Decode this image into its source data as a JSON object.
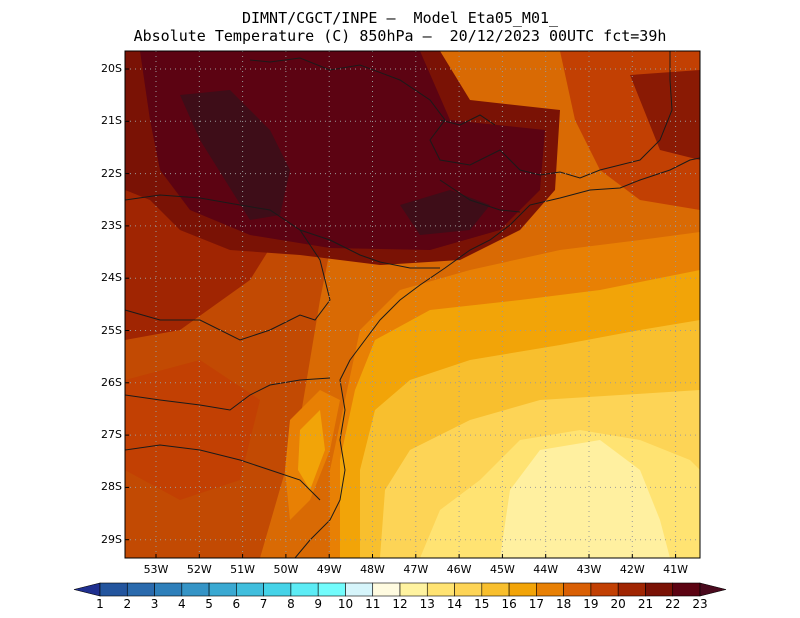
{
  "header": {
    "line1": "DIMNT/CGCT/INPE –  Model Eta05_M01_",
    "line2": "Absolute Temperature (C) 850hPa –  20/12/2023 00UTC fct=39h"
  },
  "axes": {
    "lat_labels": [
      "20S",
      "21S",
      "22S",
      "23S",
      "24S",
      "25S",
      "26S",
      "27S",
      "28S",
      "29S"
    ],
    "lon_labels": [
      "53W",
      "52W",
      "51W",
      "50W",
      "49W",
      "48W",
      "47W",
      "46W",
      "45W",
      "44W",
      "43W",
      "42W",
      "41W"
    ]
  },
  "colorbar": {
    "labels": [
      "1",
      "2",
      "3",
      "4",
      "5",
      "6",
      "7",
      "8",
      "9",
      "10",
      "11",
      "12",
      "13",
      "14",
      "15",
      "16",
      "17",
      "18",
      "19",
      "20",
      "21",
      "22",
      "23"
    ],
    "colors": [
      "#1f2f8f",
      "#23559e",
      "#2a6aad",
      "#2e7fba",
      "#3594c6",
      "#3aa9d2",
      "#40bedd",
      "#45d3e8",
      "#5cecf5",
      "#72fcfc",
      "#d6f5fb",
      "#fffbe0",
      "#fff3a0",
      "#ffe372",
      "#fdd456",
      "#f8bf2e",
      "#f2a408",
      "#e88004",
      "#d95f04",
      "#c24003",
      "#a02502",
      "#7a1205",
      "#5c0312",
      "#4a0a1e"
    ]
  }
}
